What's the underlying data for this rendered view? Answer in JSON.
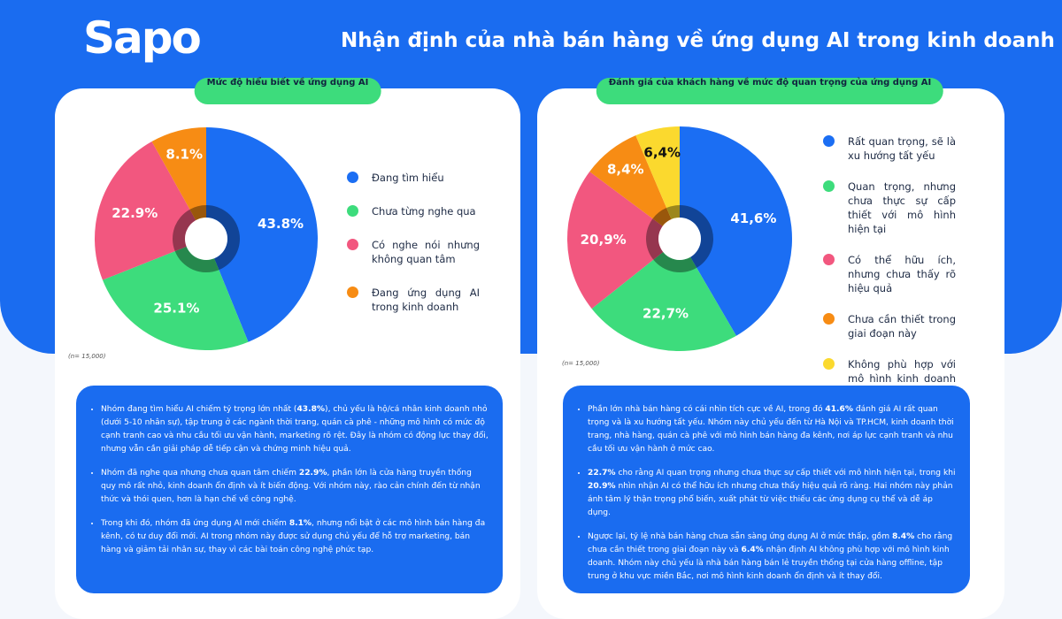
{
  "logo": "Sapo",
  "title": "Nhận định của nhà bán hàng về ứng dụng AI trong kinh doanh",
  "chart_data": [
    {
      "type": "pie",
      "title": "Mức độ hiểu biết về ứng dụng AI",
      "note": "(n= 15,000)",
      "categories": [
        "Đang tìm hiểu",
        "Chưa từng nghe qua",
        "Có nghe nói nhưng không quan tâm",
        "Đang ứng dụng AI trong kinh doanh"
      ],
      "values": [
        43.8,
        25.1,
        22.9,
        8.1
      ],
      "value_labels": [
        "43.8%",
        "25.1%",
        "22.9%",
        "8.1%"
      ],
      "colors": [
        "#1b6ef3",
        "#3ddc7c",
        "#f2577f",
        "#f78c14"
      ]
    },
    {
      "type": "pie",
      "title": "Đánh giá của khách hàng về mức độ quan trọng của ứng dụng AI",
      "note": "(n= 15,000)",
      "categories": [
        "Rất quan trọng, sẽ là xu hướng tất yếu",
        "Quan trọng, nhưng chưa thực sự cấp thiết với mô hình hiện tại",
        "Có thể hữu ích, nhưng chưa thấy rõ hiệu quả",
        "Chưa cần thiết trong giai đoạn này",
        "Không phù hợp với mô hình kinh doanh của tôi"
      ],
      "values": [
        41.6,
        22.7,
        20.9,
        8.4,
        6.4
      ],
      "value_labels": [
        "41,6%",
        "22,7%",
        "20,9%",
        "8,4%",
        "6,4%"
      ],
      "colors": [
        "#1b6ef3",
        "#3ddc7c",
        "#f2577f",
        "#f78c14",
        "#fbd92e"
      ]
    }
  ],
  "summaries": [
    [
      [
        "Nhóm đang tìm hiểu AI chiếm tỷ trọng lớn nhất (",
        {
          "text": "43.8%",
          "bold": true
        },
        "), chủ yếu là hộ/cá nhân kinh doanh nhỏ (dưới 5-10 nhân sự), tập trung ở các ngành thời trang, quán cà phê - những mô hình có mức độ cạnh tranh cao và nhu cầu tối ưu vận hành, marketing rõ rệt. Đây là nhóm có động lực thay đổi, nhưng vẫn cần giải pháp dễ tiếp cận và chứng minh hiệu quả."
      ],
      [
        "Nhóm đã nghe qua nhưng chưa quan tâm chiếm ",
        {
          "text": "22.9%",
          "bold": true
        },
        ", phần lớn là cửa hàng truyền thống quy mô rất nhỏ, kinh doanh ổn định và ít biến động. Với nhóm này, rào cản chính đến từ nhận thức và thói quen, hơn là hạn chế về công nghệ."
      ],
      [
        "Trong khi đó, nhóm đã ứng dụng AI mới chiếm ",
        {
          "text": "8.1%",
          "bold": true
        },
        ", nhưng nổi bật ở các mô hình bán hàng đa kênh, có tư duy đổi mới. AI trong nhóm này được sử dụng chủ yếu để hỗ trợ marketing, bán hàng và giảm tải nhân sự, thay vì các bài toán công nghệ phức tạp."
      ]
    ],
    [
      [
        "Phần lớn nhà bán hàng có cái nhìn tích cực về AI, trong đó ",
        {
          "text": "41.6%",
          "bold": true
        },
        " đánh giá AI rất quan trọng và là xu hướng tất yếu. Nhóm này chủ yếu đến từ Hà Nội và TP.HCM, kinh doanh thời trang, nhà hàng, quán cà phê với mô hình bán hàng đa kênh, nơi áp lực cạnh tranh và nhu cầu tối ưu vận hành ở mức cao."
      ],
      [
        {
          "text": "22.7%",
          "bold": true
        },
        " cho rằng AI quan trọng nhưng chưa thực sự cấp thiết với mô hình hiện tại, trong khi ",
        {
          "text": "20.9%",
          "bold": true
        },
        " nhìn nhận AI có thể hữu ích nhưng chưa thấy hiệu quả rõ ràng. Hai nhóm này phản ánh tâm lý thận trọng phổ biến, xuất phát từ việc thiếu các ứng dụng cụ thể và dễ áp dụng."
      ],
      [
        "Ngược lại, tỷ lệ nhà bán hàng chưa sẵn sàng ứng dụng AI ở mức thấp, gồm ",
        {
          "text": "8.4%",
          "bold": true
        },
        " cho rằng chưa cần thiết trong giai đoạn này và ",
        {
          "text": "6.4%",
          "bold": true
        },
        " nhận định AI không phù hợp với mô hình kinh doanh. Nhóm này chủ yếu là nhà bán hàng bán lẻ truyền thống tại cửa hàng offline, tập trung ở khu vực miền Bắc, nơi mô hình kinh doanh ổn định và ít thay đổi."
      ]
    ]
  ]
}
